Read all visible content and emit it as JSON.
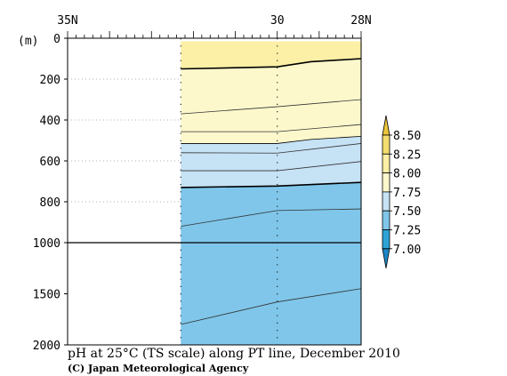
{
  "chart_data": {
    "type": "contour",
    "title": "pH at 25°C (TS scale) along PT line, December 2010",
    "credit": "(C) Japan Meteorological Agency",
    "y_unit": "(m)",
    "x_axis": {
      "ticks": [
        {
          "lat": 35,
          "label": "35N"
        },
        {
          "lat": 30,
          "label": "30"
        },
        {
          "lat": 28,
          "label": "28N"
        }
      ],
      "range": [
        35,
        28
      ]
    },
    "y_axis": {
      "upper_ticks": [
        {
          "depth": 0,
          "label": "0"
        },
        {
          "depth": 200,
          "label": "200"
        },
        {
          "depth": 400,
          "label": "400"
        },
        {
          "depth": 600,
          "label": "600"
        },
        {
          "depth": 800,
          "label": "800"
        },
        {
          "depth": 1000,
          "label": "1000"
        }
      ],
      "lower_ticks": [
        {
          "depth": 1500,
          "label": "1500"
        },
        {
          "depth": 2000,
          "label": "2000"
        }
      ],
      "upper_range": [
        0,
        1000
      ],
      "lower_range": [
        1000,
        2000
      ]
    },
    "data_extent": {
      "lat_from": 32.3,
      "lat_to": 28
    },
    "color_levels": [
      {
        "from": 8.0,
        "to": 8.25,
        "color": "#fbf0a6"
      },
      {
        "from": 7.75,
        "to": 8.0,
        "color": "#fdf8cc"
      },
      {
        "from": 7.5,
        "to": 7.75,
        "color": "#c6e2f5"
      },
      {
        "from": 7.25,
        "to": 7.5,
        "color": "#7fc6ea"
      }
    ],
    "colorbar": {
      "labels": [
        "8.50",
        "8.25",
        "8.00",
        "7.75",
        "7.50",
        "7.25",
        "7.00"
      ],
      "colors": [
        "#e9c63a",
        "#f3dd6f",
        "#fbf0a6",
        "#fdf8cc",
        "#c6e2f5",
        "#7fc6ea",
        "#2ea3d6",
        "#1c86c6"
      ]
    },
    "boundaries": [
      {
        "name": "8.00",
        "bold": true,
        "points": [
          [
            32.3,
            150
          ],
          [
            30,
            140
          ],
          [
            29.2,
            115
          ],
          [
            28,
            100
          ]
        ]
      },
      {
        "name": "7.75",
        "bold": false,
        "points": [
          [
            32.3,
            515
          ],
          [
            30,
            515
          ],
          [
            29.2,
            495
          ],
          [
            28,
            480
          ]
        ]
      },
      {
        "name": "7.50",
        "bold": true,
        "points": [
          [
            32.3,
            730
          ],
          [
            30,
            723
          ],
          [
            28,
            705
          ]
        ]
      }
    ],
    "sub_contours": [
      {
        "points": [
          [
            32.3,
            370
          ],
          [
            30,
            335
          ],
          [
            28,
            300
          ]
        ]
      },
      {
        "points": [
          [
            32.3,
            457
          ],
          [
            30,
            457
          ],
          [
            28,
            422
          ]
        ]
      },
      {
        "points": [
          [
            32.3,
            560
          ],
          [
            30,
            562
          ],
          [
            28,
            515
          ]
        ]
      },
      {
        "points": [
          [
            32.3,
            648
          ],
          [
            30,
            648
          ],
          [
            28,
            603
          ]
        ]
      },
      {
        "points": [
          [
            32.3,
            920
          ],
          [
            30,
            843
          ],
          [
            28,
            835
          ]
        ]
      },
      {
        "points": [
          [
            32.3,
            1800
          ],
          [
            30,
            1580
          ],
          [
            28,
            1450
          ]
        ]
      }
    ],
    "station_lats": [
      32.3,
      30,
      28
    ],
    "top_band": {
      "from_depth": 0,
      "to_depth": 15,
      "color": "#ffffff"
    }
  }
}
